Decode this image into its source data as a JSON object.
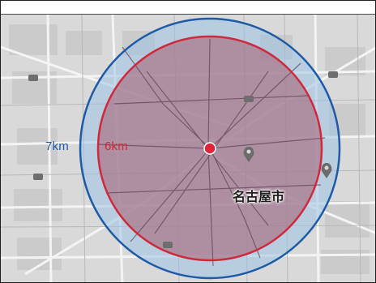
{
  "map": {
    "city_label": "名古屋市",
    "colors": {
      "outer_ring": "#1d5ba6",
      "inner_ring": "#cf2a3c",
      "center_dot": "#e0243a",
      "outer_fill": "#9ec3e6",
      "inner_fill": "#a86d80"
    },
    "rings": {
      "outer": {
        "label": "7km",
        "color": "#1d5ba6"
      },
      "inner": {
        "label": "6km",
        "color": "#cf2a3c"
      }
    },
    "icons": [
      "pin-icon",
      "pin-icon",
      "route-shield-icon"
    ]
  }
}
